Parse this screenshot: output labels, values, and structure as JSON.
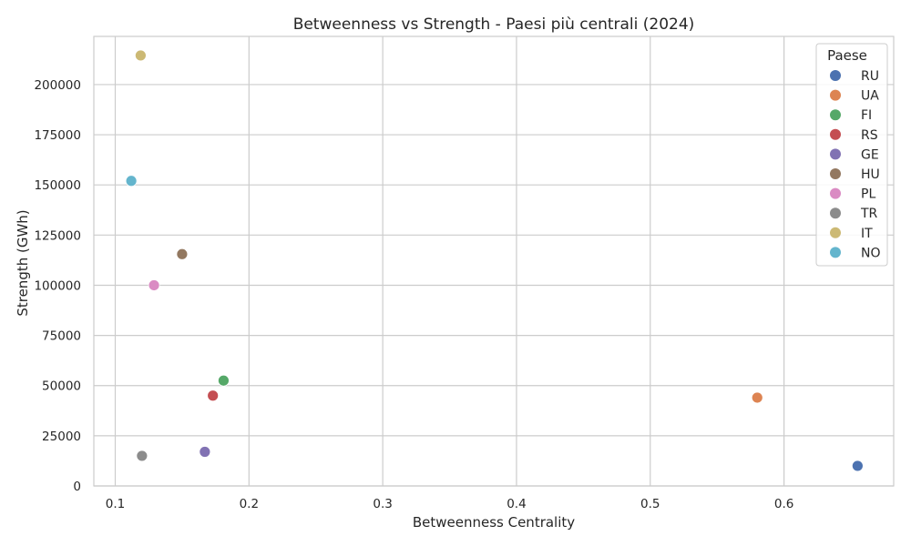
{
  "chart_data": {
    "type": "scatter",
    "title": "Betweenness vs Strength - Paesi più centrali (2024)",
    "xlabel": "Betweenness Centrality",
    "ylabel": "Strength (GWh)",
    "xlim": [
      0.084,
      0.682
    ],
    "ylim": [
      0,
      224000
    ],
    "xticks": [
      0.1,
      0.2,
      0.3,
      0.4,
      0.5,
      0.6
    ],
    "xtick_labels": [
      "0.1",
      "0.2",
      "0.3",
      "0.4",
      "0.5",
      "0.6"
    ],
    "yticks": [
      0,
      25000,
      50000,
      75000,
      100000,
      125000,
      150000,
      175000,
      200000
    ],
    "ytick_labels": [
      "0",
      "25000",
      "50000",
      "75000",
      "100000",
      "125000",
      "150000",
      "175000",
      "200000"
    ],
    "grid": true,
    "legend": {
      "title": "Paese",
      "placement": "top-right"
    },
    "series": [
      {
        "name": "RU",
        "color": "#4c72b0",
        "x": 0.655,
        "y": 10000
      },
      {
        "name": "UA",
        "color": "#dd8452",
        "x": 0.58,
        "y": 44000
      },
      {
        "name": "FI",
        "color": "#55a868",
        "x": 0.181,
        "y": 52500
      },
      {
        "name": "RS",
        "color": "#c44e52",
        "x": 0.173,
        "y": 45000
      },
      {
        "name": "GE",
        "color": "#8172b3",
        "x": 0.167,
        "y": 17000
      },
      {
        "name": "HU",
        "color": "#937860",
        "x": 0.15,
        "y": 115500
      },
      {
        "name": "PL",
        "color": "#da8bc3",
        "x": 0.129,
        "y": 100000
      },
      {
        "name": "TR",
        "color": "#8c8c8c",
        "x": 0.12,
        "y": 15000
      },
      {
        "name": "IT",
        "color": "#ccb974",
        "x": 0.119,
        "y": 214500
      },
      {
        "name": "NO",
        "color": "#64b5cd",
        "x": 0.112,
        "y": 152000
      }
    ]
  }
}
